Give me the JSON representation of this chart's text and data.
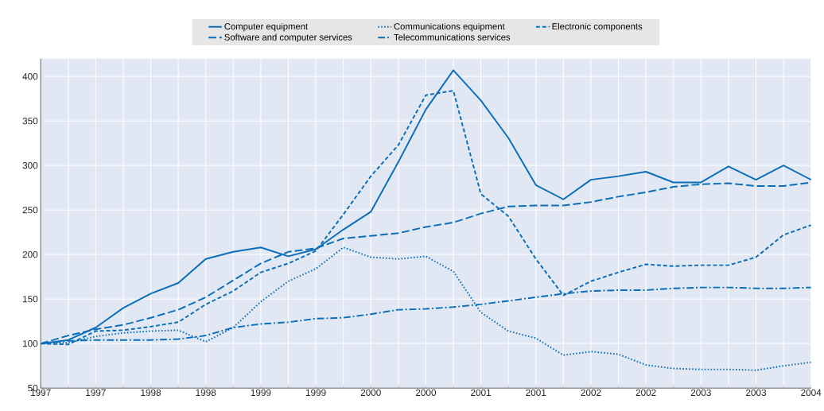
{
  "chart_data": {
    "type": "line",
    "categories": [
      "1997",
      null,
      "1997",
      null,
      "1998",
      null,
      "1998",
      null,
      "1999",
      null,
      "1999",
      null,
      "2000",
      null,
      "2000",
      null,
      "2001",
      null,
      "2001",
      null,
      "2002",
      null,
      "2002",
      null,
      "2003",
      null,
      "2003",
      null,
      "2004"
    ],
    "series": [
      {
        "name": "Computer equipment",
        "color": "#0a6eb9",
        "line_style": "solid",
        "values": [
          100,
          104,
          118,
          140,
          156,
          168,
          195,
          203,
          208,
          198,
          206,
          228,
          248,
          304,
          363,
          407,
          373,
          331,
          278,
          262,
          284,
          288,
          293,
          281,
          281,
          299,
          284,
          300,
          284
        ]
      },
      {
        "name": "Communications equipment",
        "color": "#0a6eb9",
        "line_style": "dotted",
        "values": [
          100,
          101,
          108,
          112,
          114,
          115,
          102,
          118,
          147,
          170,
          184,
          208,
          197,
          195,
          198,
          181,
          135,
          114,
          106,
          87,
          91,
          88,
          76,
          72,
          71,
          71,
          70,
          75,
          79
        ]
      },
      {
        "name": "Electronic components",
        "color": "#0a6eb9",
        "line_style": "dashed",
        "values": [
          100,
          99,
          114,
          115,
          119,
          124,
          144,
          159,
          180,
          190,
          204,
          245,
          288,
          323,
          379,
          384,
          268,
          243,
          195,
          154,
          170,
          180,
          189,
          187,
          188,
          188,
          197,
          222,
          233
        ]
      },
      {
        "name": "Software and computer services",
        "color": "#0a6eb9",
        "line_style": "long dashed",
        "values": [
          100,
          109,
          116,
          121,
          129,
          138,
          152,
          171,
          190,
          203,
          207,
          218,
          221,
          224,
          231,
          236,
          246,
          254,
          255,
          255,
          259,
          265,
          270,
          276,
          279,
          280,
          277,
          277,
          281
        ]
      },
      {
        "name": "Telecommunications services",
        "color": "#0a6eb9",
        "line_style": "dash dot",
        "values": [
          100,
          103,
          104,
          104,
          104,
          105,
          109,
          118,
          122,
          124,
          128,
          129,
          133,
          138,
          139,
          141,
          144,
          148,
          152,
          156,
          159,
          160,
          160,
          162,
          163,
          163,
          162,
          162,
          163
        ]
      }
    ],
    "ylim": [
      50,
      420
    ],
    "yticks": [
      50,
      100,
      150,
      200,
      250,
      300,
      350,
      400
    ],
    "grid": true,
    "legend": "top",
    "marker": "none"
  }
}
